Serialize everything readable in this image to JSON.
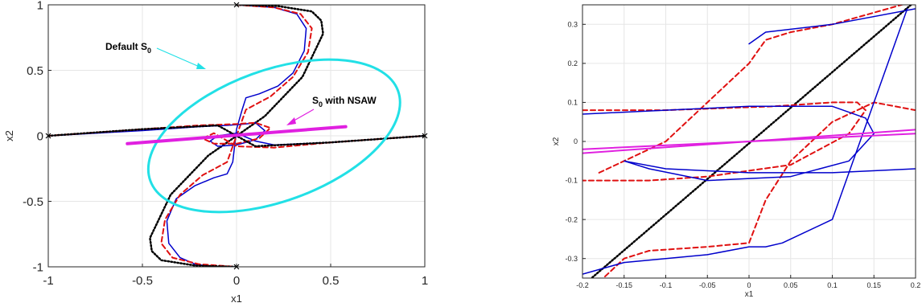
{
  "chart_data": [
    {
      "type": "line",
      "xlabel": "x1",
      "ylabel": "x2",
      "xlim": [
        -1,
        1
      ],
      "ylim": [
        -1,
        1
      ],
      "xticks": [
        "-1",
        "-0.5",
        "0",
        "0.5",
        "1"
      ],
      "yticks": [
        "-1",
        "-0.5",
        "0",
        "0.5",
        "1"
      ],
      "grid": true,
      "colors": {
        "blue": "#0000cc",
        "red": "#e01010",
        "black": "#000000",
        "cyan": "#22e0e6",
        "magenta": "#e020e0"
      },
      "annotations": [
        {
          "text": "Default S",
          "sub": "0",
          "suffix": ""
        },
        {
          "text": "S",
          "sub": "0",
          "suffix": " with NSAW"
        }
      ],
      "series": [
        {
          "style": "blue-solid",
          "x": [
            0,
            0.2,
            0.32,
            0.37,
            0.36,
            0.3,
            0.22,
            0.12,
            0.05,
            0.03,
            0,
            -0.02,
            -0.05,
            -0.12,
            -0.22,
            -0.32,
            -0.37,
            -0.36,
            -0.3,
            -0.22,
            -0.12,
            -0.05,
            0
          ],
          "y": [
            1,
            0.98,
            0.93,
            0.82,
            0.65,
            0.48,
            0.38,
            0.32,
            0.29,
            0.2,
            0.05,
            -0.2,
            -0.29,
            -0.32,
            -0.38,
            -0.48,
            -0.65,
            -0.82,
            -0.93,
            -0.98,
            -1,
            -1,
            -1
          ]
        },
        {
          "style": "red-dashed",
          "x": [
            0,
            0.2,
            0.34,
            0.4,
            0.38,
            0.3,
            0.18,
            0.05,
            0.02,
            -0.02,
            -0.05,
            -0.18,
            -0.3,
            -0.38,
            -0.4,
            -0.34,
            -0.2,
            0
          ],
          "y": [
            1,
            0.98,
            0.93,
            0.82,
            0.64,
            0.45,
            0.3,
            0.2,
            0.08,
            -0.08,
            -0.2,
            -0.3,
            -0.45,
            -0.64,
            -0.82,
            -0.93,
            -0.98,
            -1
          ]
        },
        {
          "style": "black-dotted",
          "x": [
            0,
            0.22,
            0.4,
            0.45,
            0.46,
            0.35,
            0.15,
            -0.15,
            -0.35,
            -0.46,
            -0.45,
            -0.4,
            -0.22,
            0
          ],
          "y": [
            1,
            0.99,
            0.95,
            0.88,
            0.78,
            0.45,
            0.15,
            -0.15,
            -0.45,
            -0.78,
            -0.88,
            -0.95,
            -0.99,
            -1
          ]
        },
        {
          "style": "blue-solid",
          "x": [
            -1,
            -0.5,
            -0.2,
            -0.05,
            0.05,
            0.1,
            0.15,
            0.1,
            0.0,
            -0.1,
            -0.14,
            -0.1,
            0,
            0.1,
            0.2,
            0.5,
            1
          ],
          "y": [
            0,
            0.04,
            0.07,
            0.08,
            0.09,
            0.1,
            0.04,
            -0.03,
            -0.07,
            -0.08,
            -0.04,
            0.0,
            0.02,
            -0.04,
            -0.07,
            -0.05,
            0
          ]
        },
        {
          "style": "red-dashed",
          "x": [
            -1,
            -0.5,
            -0.2,
            0,
            0.1,
            0.18,
            0.12,
            0,
            -0.12,
            -0.18,
            -0.12,
            0,
            0.2,
            0.5,
            1
          ],
          "y": [
            0,
            0.05,
            0.08,
            0.09,
            0.1,
            0.06,
            -0.02,
            -0.06,
            -0.06,
            -0.02,
            0.02,
            -0.08,
            -0.09,
            -0.05,
            0
          ]
        },
        {
          "style": "black-dotted",
          "x": [
            -1,
            -0.5,
            -0.1,
            0,
            0.1,
            0.5,
            1
          ],
          "y": [
            0,
            0.05,
            0.08,
            0.0,
            -0.08,
            -0.05,
            0
          ]
        },
        {
          "style": "cyan-ellipse",
          "center": [
            0.2,
            0
          ],
          "semi_axes": [
            0.7,
            0.5
          ],
          "rotation_deg": 20
        },
        {
          "style": "magenta-thick",
          "x": [
            -0.58,
            0.58
          ],
          "y": [
            -0.06,
            0.07
          ]
        }
      ]
    },
    {
      "type": "line",
      "xlabel": "x1",
      "ylabel": "x2",
      "xlim": [
        -0.2,
        0.2
      ],
      "ylim": [
        -0.35,
        0.35
      ],
      "xticks": [
        "-0.2",
        "-0.15",
        "-0.1",
        "-0.05",
        "0",
        "0.05",
        "0.1",
        "0.15",
        "0.2"
      ],
      "yticks": [
        "-0.3",
        "-0.2",
        "-0.1",
        "0",
        "0.1",
        "0.2",
        "0.3"
      ],
      "grid": true,
      "series": [
        {
          "style": "black-dotted",
          "x": [
            -0.2,
            0.2
          ],
          "y": [
            -0.37,
            0.36
          ]
        },
        {
          "style": "red-dashed",
          "x": [
            -0.2,
            -0.1,
            0.03,
            0.1,
            0.13,
            0.14,
            0.12,
            0.05,
            -0.05,
            -0.12,
            -0.15,
            -0.2
          ],
          "y": [
            0.08,
            0.08,
            0.09,
            0.1,
            0.1,
            0.08,
            0.02,
            -0.06,
            -0.09,
            -0.1,
            -0.1,
            -0.1
          ]
        },
        {
          "style": "red-dashed",
          "x": [
            -0.18,
            -0.15,
            -0.12,
            -0.05,
            0,
            0.02,
            0.05,
            0.1,
            0.15,
            0.2
          ],
          "y": [
            -0.36,
            -0.3,
            -0.28,
            -0.27,
            -0.26,
            -0.15,
            -0.05,
            0.05,
            0.1,
            0.08
          ]
        },
        {
          "style": "red-dashed",
          "x": [
            -0.18,
            -0.1,
            -0.05,
            0,
            0.02,
            0.05,
            0.1,
            0.15,
            0.2
          ],
          "y": [
            -0.08,
            0.0,
            0.1,
            0.2,
            0.26,
            0.28,
            0.3,
            0.33,
            0.36
          ]
        },
        {
          "style": "blue-solid",
          "x": [
            -0.2,
            -0.1,
            0,
            0.1,
            0.14,
            0.15,
            0.12,
            0.05,
            -0.05,
            -0.12,
            -0.15,
            -0.1,
            0,
            0.1,
            0.2
          ],
          "y": [
            0.07,
            0.08,
            0.09,
            0.09,
            0.06,
            0.02,
            -0.05,
            -0.09,
            -0.1,
            -0.07,
            -0.05,
            -0.07,
            -0.08,
            -0.08,
            -0.07
          ]
        },
        {
          "style": "blue-solid",
          "x": [
            -0.2,
            -0.15,
            -0.1,
            -0.05,
            0,
            0.02,
            0.04,
            0.1,
            0.15,
            0.19
          ],
          "y": [
            -0.34,
            -0.31,
            -0.3,
            -0.29,
            -0.27,
            -0.27,
            -0.26,
            -0.2,
            0.1,
            0.34
          ]
        },
        {
          "style": "blue-solid",
          "x": [
            0,
            0.02,
            0.1,
            0.2
          ],
          "y": [
            0.25,
            0.28,
            0.3,
            0.34
          ]
        },
        {
          "style": "magenta",
          "x": [
            -0.2,
            0.2
          ],
          "y": [
            -0.02,
            0.02
          ]
        },
        {
          "style": "magenta",
          "x": [
            -0.2,
            0.2
          ],
          "y": [
            -0.03,
            0.03
          ]
        }
      ]
    }
  ]
}
